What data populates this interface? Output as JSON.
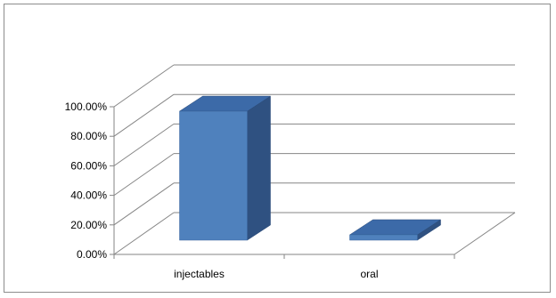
{
  "chart_data": {
    "type": "bar",
    "categories": [
      "injectables",
      "oral"
    ],
    "values": [
      96,
      4
    ],
    "ylim": [
      0,
      100
    ],
    "y_ticks": [
      "0.00%",
      "20.00%",
      "40.00%",
      "60.00%",
      "80.00%",
      "100.00%"
    ],
    "title": "",
    "xlabel": "",
    "ylabel": "",
    "grid": true,
    "legend": "none",
    "style": "3d-column",
    "colors": {
      "bar_front": "#4f81bd",
      "bar_side": "#2f5181",
      "bar_top": "#3c6aa8",
      "grid": "#868686",
      "axis": "#868686"
    }
  }
}
